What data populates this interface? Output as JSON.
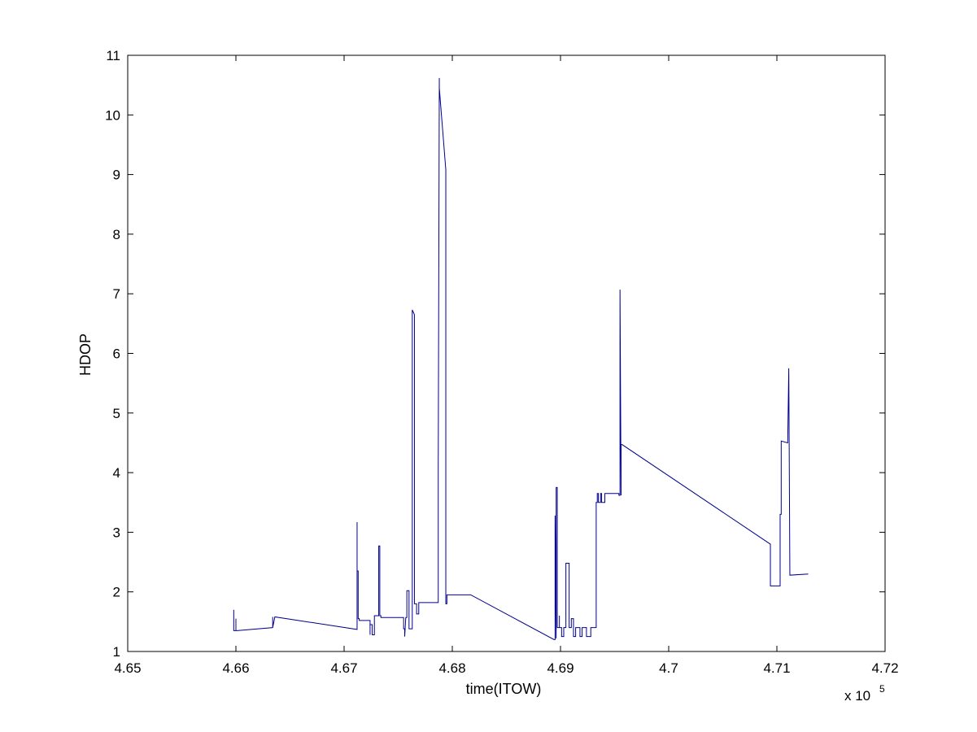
{
  "chart_data": {
    "type": "line",
    "title": "",
    "xlabel": "time(ITOW)",
    "ylabel": "HDOP",
    "x_exponent_label": "x 10",
    "x_exponent_power": "5",
    "xlim": [
      4.65,
      4.72
    ],
    "ylim": [
      1,
      11
    ],
    "x_ticks": [
      4.65,
      4.66,
      4.67,
      4.68,
      4.69,
      4.7,
      4.71,
      4.72
    ],
    "x_tick_labels": [
      "4.65",
      "4.66",
      "4.67",
      "4.68",
      "4.69",
      "4.7",
      "4.71",
      "4.72"
    ],
    "y_ticks": [
      1,
      2,
      3,
      4,
      5,
      6,
      7,
      8,
      9,
      10,
      11
    ],
    "y_tick_labels": [
      "1",
      "2",
      "3",
      "4",
      "5",
      "6",
      "7",
      "8",
      "9",
      "10",
      "11"
    ],
    "grid": false,
    "line_color": "#00008b",
    "series": [
      {
        "x": [
          4.6598,
          4.6598,
          4.66,
          4.66,
          4.66,
          4.6601,
          4.6601,
          4.6634,
          4.6634,
          4.6634,
          4.6634,
          4.6636,
          4.6636,
          4.6712,
          4.6712,
          4.6712,
          4.6712,
          4.6713,
          4.6713,
          4.6714,
          4.6714,
          4.6724,
          4.6724,
          4.6724,
          4.6726,
          4.6726,
          4.6728,
          4.6728,
          4.6732,
          4.6732,
          4.6733,
          4.6733,
          4.6734,
          4.6734,
          4.6755,
          4.6755,
          4.6756,
          4.6756,
          4.6757,
          4.6758,
          4.6758,
          4.676,
          4.676,
          4.6763,
          4.6763,
          4.6765,
          4.6765,
          4.6767,
          4.6767,
          4.6769,
          4.6769,
          4.677,
          4.677,
          4.6787,
          4.6787,
          4.6788,
          4.6788,
          4.6794,
          4.6794,
          4.6795,
          4.6795,
          4.6817,
          4.6894,
          4.6895,
          4.6895,
          4.6896,
          4.6896,
          4.6897,
          4.6897,
          4.6899,
          4.6899,
          4.6899,
          4.6899,
          4.6901,
          4.6901,
          4.6903,
          4.6903,
          4.6905,
          4.6905,
          4.6908,
          4.6908,
          4.691,
          4.691,
          4.6912,
          4.6912,
          4.6914,
          4.6914,
          4.6918,
          4.6918,
          4.692,
          4.692,
          4.6924,
          4.6924,
          4.6928,
          4.6928,
          4.6933,
          4.6933,
          4.6934,
          4.6934,
          4.6935,
          4.6935,
          4.6937,
          4.6937,
          4.6938,
          4.6938,
          4.6941,
          4.6941,
          4.6954,
          4.6954,
          4.6955,
          4.6955,
          4.6956,
          4.6956,
          4.6957,
          4.7094,
          4.7094,
          4.7103,
          4.7103,
          4.7104,
          4.7104,
          4.711,
          4.711,
          4.7111,
          4.7111,
          4.7112,
          4.7112,
          4.7129
        ],
        "y": [
          1.7,
          1.35,
          1.35,
          1.55,
          1.35,
          1.35,
          1.35,
          1.4,
          1.4,
          1.58,
          1.4,
          1.58,
          1.58,
          1.37,
          1.37,
          3.17,
          2.35,
          2.35,
          1.55,
          1.55,
          1.52,
          1.52,
          1.28,
          1.45,
          1.45,
          1.28,
          1.28,
          1.6,
          1.6,
          2.77,
          2.77,
          1.6,
          1.6,
          1.57,
          1.57,
          1.38,
          1.38,
          1.25,
          1.57,
          1.57,
          2.02,
          2.02,
          1.38,
          1.38,
          6.73,
          6.65,
          1.8,
          1.8,
          1.63,
          1.63,
          1.82,
          1.82,
          1.82,
          1.82,
          4.05,
          10.62,
          10.45,
          9.08,
          1.8,
          1.8,
          1.95,
          1.95,
          1.2,
          1.2,
          3.28,
          1.22,
          3.75,
          3.75,
          1.4,
          1.4,
          1.6,
          1.6,
          1.4,
          1.4,
          1.25,
          1.25,
          1.4,
          1.4,
          2.48,
          2.48,
          1.4,
          1.4,
          1.55,
          1.55,
          1.25,
          1.25,
          1.4,
          1.4,
          1.25,
          1.25,
          1.4,
          1.4,
          1.25,
          1.25,
          1.4,
          1.4,
          3.5,
          3.5,
          3.65,
          3.65,
          3.5,
          3.5,
          3.65,
          3.65,
          3.5,
          3.5,
          3.65,
          3.65,
          3.62,
          3.62,
          7.07,
          3.62,
          4.47,
          4.47,
          2.8,
          2.1,
          2.1,
          3.3,
          3.3,
          4.53,
          4.5,
          4.5,
          5.75,
          5.75,
          2.28,
          2.28,
          2.3
        ]
      }
    ]
  }
}
